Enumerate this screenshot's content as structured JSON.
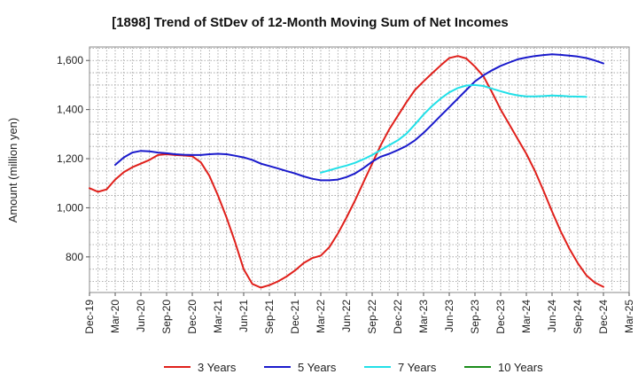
{
  "chart_data": {
    "type": "line",
    "title": "[1898]  Trend of StDev of 12-Month Moving Sum of Net Incomes",
    "xlabel": "",
    "ylabel": "Amount (million yen)",
    "x_ticks": [
      "Dec-19",
      "Mar-20",
      "Jun-20",
      "Sep-20",
      "Dec-20",
      "Mar-21",
      "Jun-21",
      "Sep-21",
      "Dec-21",
      "Mar-22",
      "Jun-22",
      "Sep-22",
      "Dec-22",
      "Mar-23",
      "Jun-23",
      "Sep-23",
      "Dec-23",
      "Mar-24",
      "Jun-24",
      "Sep-24",
      "Dec-24",
      "Mar-25"
    ],
    "y_ticks": [
      800,
      1000,
      1200,
      1400,
      1600
    ],
    "y_tick_labels": [
      "800",
      "1,000",
      "1,200",
      "1,400",
      "1,600"
    ],
    "ylim": [
      655,
      1655
    ],
    "grid": true,
    "legend_position": "bottom",
    "series": [
      {
        "name": "3 Years",
        "color": "#e0201b",
        "values": [
          1080,
          1065,
          1075,
          1115,
          1145,
          1165,
          1180,
          1195,
          1215,
          1218,
          1215,
          1213,
          1210,
          1185,
          1130,
          1050,
          960,
          860,
          750,
          690,
          675,
          685,
          700,
          720,
          745,
          775,
          795,
          805,
          840,
          895,
          960,
          1030,
          1105,
          1180,
          1255,
          1320,
          1375,
          1430,
          1480,
          1515,
          1548,
          1580,
          1610,
          1618,
          1608,
          1575,
          1535,
          1470,
          1400,
          1340,
          1280,
          1220,
          1150,
          1070,
          985,
          905,
          835,
          775,
          725,
          695,
          678
        ]
      },
      {
        "name": "5 Years",
        "color": "#1a1acc",
        "values": [
          null,
          null,
          null,
          1175,
          1205,
          1225,
          1232,
          1230,
          1225,
          1222,
          1218,
          1216,
          1215,
          1215,
          1218,
          1220,
          1218,
          1212,
          1205,
          1195,
          1180,
          1170,
          1160,
          1150,
          1140,
          1128,
          1118,
          1112,
          1112,
          1115,
          1125,
          1140,
          1162,
          1188,
          1208,
          1220,
          1235,
          1252,
          1275,
          1305,
          1340,
          1375,
          1410,
          1445,
          1480,
          1515,
          1540,
          1560,
          1578,
          1592,
          1605,
          1612,
          1618,
          1622,
          1625,
          1623,
          1620,
          1616,
          1610,
          1600,
          1588
        ]
      },
      {
        "name": "7 Years",
        "color": "#22e0e8",
        "values": [
          null,
          null,
          null,
          null,
          null,
          null,
          null,
          null,
          null,
          null,
          null,
          null,
          null,
          null,
          null,
          null,
          null,
          null,
          null,
          null,
          null,
          null,
          null,
          null,
          null,
          null,
          null,
          1143,
          1153,
          1163,
          1172,
          1183,
          1198,
          1215,
          1235,
          1255,
          1275,
          1302,
          1340,
          1380,
          1415,
          1445,
          1470,
          1488,
          1498,
          1500,
          1496,
          1485,
          1475,
          1465,
          1458,
          1454,
          1454,
          1455,
          1457,
          1456,
          1454,
          1453,
          1452
        ]
      },
      {
        "name": "10 Years",
        "color": "#1a8c1a",
        "values": []
      }
    ]
  }
}
